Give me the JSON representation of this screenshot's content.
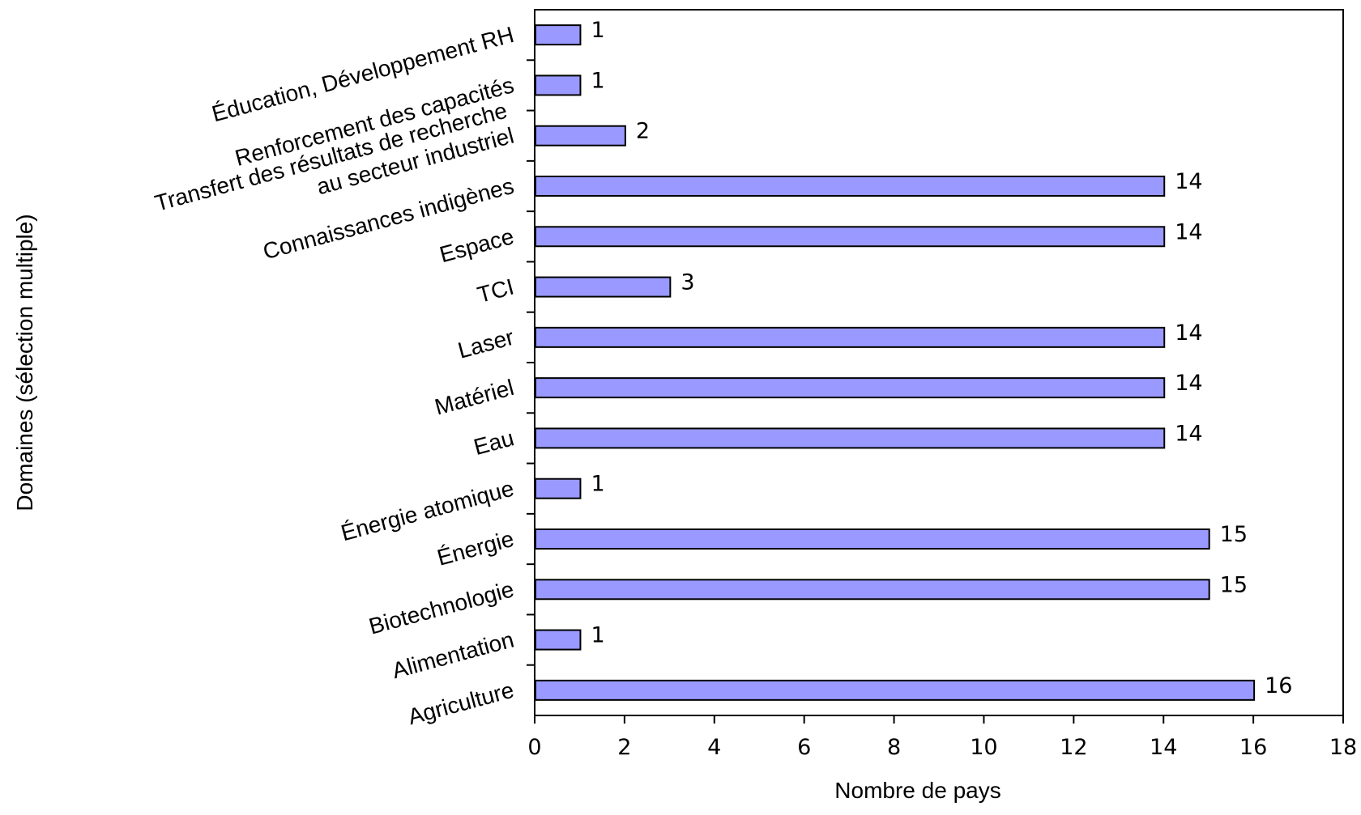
{
  "chart_data": {
    "type": "bar",
    "orientation": "horizontal",
    "categories": [
      "Éducation, Développement RH",
      "Renforcement des capacités",
      "Transfert des résultats de recherche\nau secteur industriel",
      "Connaissances indigènes",
      "Espace",
      "TCI",
      "Laser",
      "Matériel",
      "Eau",
      "Énergie atomique",
      "Énergie",
      "Biotechnologie",
      "Alimentation",
      "Agriculture"
    ],
    "values": [
      1,
      1,
      2,
      14,
      14,
      3,
      14,
      14,
      14,
      1,
      15,
      15,
      1,
      16
    ],
    "xlabel": "Nombre de pays",
    "ylabel": "Domaines (sélection multiple)",
    "xlim": [
      0,
      18
    ],
    "xticks": [
      0,
      2,
      4,
      6,
      8,
      10,
      12,
      14,
      16,
      18
    ],
    "bar_color": "#9999ff",
    "bar_edge_color": "#000000",
    "grid": false,
    "legend": "none"
  }
}
